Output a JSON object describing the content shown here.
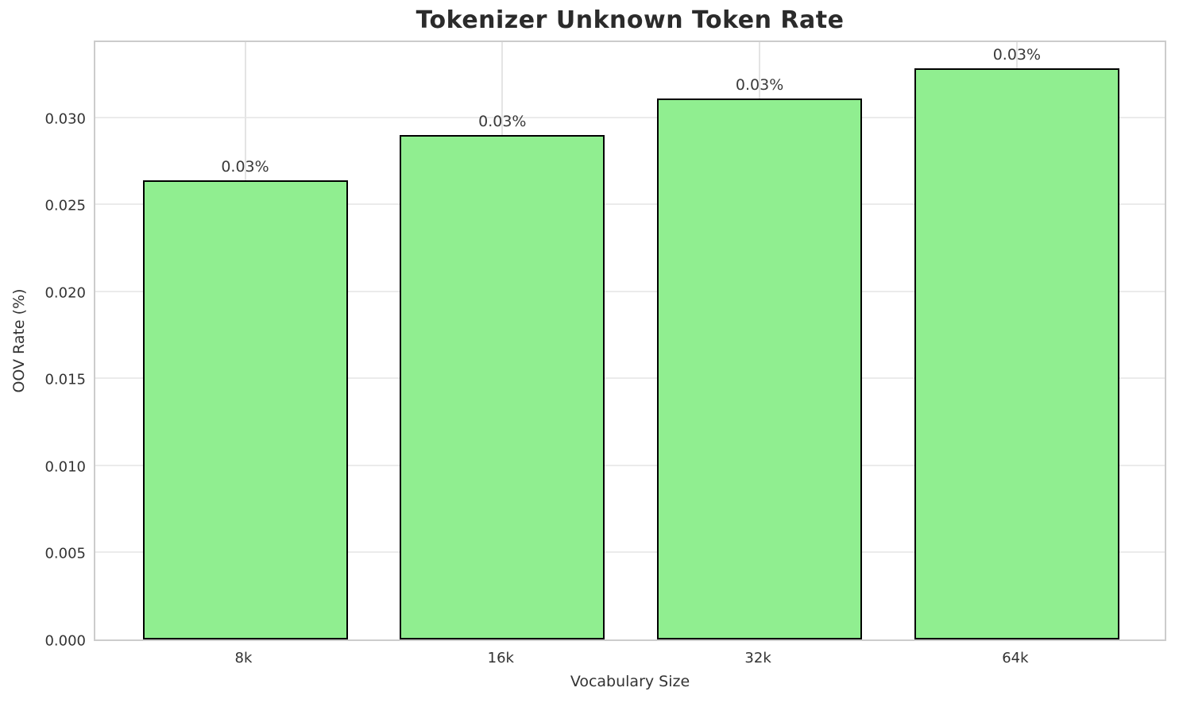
{
  "chart_data": {
    "type": "bar",
    "title": "Tokenizer Unknown Token Rate",
    "xlabel": "Vocabulary Size",
    "ylabel": "OOV Rate (%)",
    "categories": [
      "8k",
      "16k",
      "32k",
      "64k"
    ],
    "values": [
      0.0264,
      0.029,
      0.0311,
      0.0328
    ],
    "bar_labels": [
      "0.03%",
      "0.03%",
      "0.03%",
      "0.03%"
    ],
    "ytick_labels": [
      "0.000",
      "0.005",
      "0.010",
      "0.015",
      "0.020",
      "0.025",
      "0.030"
    ],
    "ytick_values": [
      0,
      0.005,
      0.01,
      0.015,
      0.02,
      0.025,
      0.03
    ],
    "ylim": [
      0,
      0.0345
    ],
    "grid": true,
    "legend": null,
    "colors": {
      "bar_fill": "#90EE90",
      "bar_edge": "#000000",
      "grid_h": "#ebebeb",
      "grid_v": "#e4e4e4",
      "axes_border": "#cccccc",
      "title_text": "#2b2b2b",
      "tick_text": "#333333"
    }
  }
}
